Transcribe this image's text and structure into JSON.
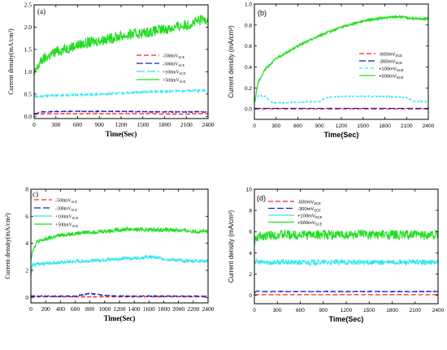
{
  "chart_data": [
    {
      "id": "a",
      "type": "line",
      "panel_label": "(a)",
      "xlabel": "Time(Sec)",
      "ylabel": "Current density(mA/cm²)",
      "xlim": [
        0,
        2400
      ],
      "ylim": [
        -0.05,
        2.5
      ],
      "xticks": [
        0,
        300,
        600,
        900,
        1200,
        1500,
        1800,
        2100,
        2400
      ],
      "yticks": [
        0.0,
        0.5,
        1.0,
        1.5,
        2.0,
        2.5
      ],
      "ytick_labels": [
        "0.0",
        "0.5",
        "1.0",
        "1.5",
        "2.0",
        "2.5"
      ],
      "legend_position": "center-right",
      "series": [
        {
          "name": "-500mV",
          "sub": "SCE",
          "color": "#ff2020",
          "dash": "6,3",
          "x": [
            0,
            400,
            800,
            1200,
            1600,
            2000,
            2400
          ],
          "y": [
            0.05,
            0.06,
            0.06,
            0.06,
            0.06,
            0.05,
            0.06
          ],
          "noise": 0.005
        },
        {
          "name": "-300mV",
          "sub": "SCE",
          "color": "#1c1cc8",
          "dash": "8,3",
          "x": [
            0,
            100,
            400,
            800,
            1200,
            1600,
            2000,
            2400
          ],
          "y": [
            0.05,
            0.1,
            0.11,
            0.11,
            0.11,
            0.1,
            0.1,
            0.1
          ],
          "noise": 0.01
        },
        {
          "name": "+100mV",
          "sub": "SCE",
          "color": "#33e6f0",
          "dash": "10,3",
          "x": [
            0,
            30,
            300,
            800,
            1200,
            1600,
            2000,
            2400
          ],
          "y": [
            0.5,
            0.44,
            0.47,
            0.49,
            0.52,
            0.55,
            0.57,
            0.58
          ],
          "noise": 0.02
        },
        {
          "name": "+500mV",
          "sub": "SCE",
          "color": "#22dd22",
          "dash": "",
          "x": [
            0,
            30,
            100,
            300,
            600,
            900,
            1200,
            1500,
            1800,
            2100,
            2400
          ],
          "y": [
            0.9,
            1.05,
            1.25,
            1.45,
            1.6,
            1.7,
            1.8,
            1.87,
            1.95,
            2.05,
            2.2
          ],
          "noise": 0.12
        }
      ]
    },
    {
      "id": "b",
      "type": "line",
      "panel_label": "(b)",
      "xlabel": "Time(Sec)",
      "ylabel": "Current density (mA/cm²)",
      "xlim": [
        0,
        2400
      ],
      "ylim": [
        -0.1,
        1.0
      ],
      "xticks": [
        0,
        300,
        600,
        900,
        1200,
        1500,
        1800,
        2100,
        2400
      ],
      "yticks": [
        -0.2,
        0.0,
        0.2,
        0.4,
        0.6,
        0.8,
        1.0
      ],
      "ytick_labels": [
        "-0.2",
        "0.0",
        "0.2",
        "0.4",
        "0.6",
        "0.8",
        "1.0"
      ],
      "legend_position": "center-right",
      "series": [
        {
          "name": "-500mV",
          "sub": "SCE",
          "color": "#ff2020",
          "dash": "6,3",
          "x": [
            0,
            2400
          ],
          "y": [
            0.0,
            0.0
          ],
          "noise": 0.0
        },
        {
          "name": "-300mV",
          "sub": "SCE",
          "color": "#1c1cc8",
          "dash": "8,3",
          "x": [
            0,
            2400
          ],
          "y": [
            0.005,
            0.005
          ],
          "noise": 0.0
        },
        {
          "name": "+100mV",
          "sub": "SCE",
          "color": "#33e6f0",
          "dash": "4,3",
          "x": [
            0,
            60,
            150,
            250,
            400,
            900,
            1000,
            1300,
            1700,
            2100,
            2200,
            2400
          ],
          "y": [
            0.07,
            0.13,
            0.12,
            0.06,
            0.06,
            0.07,
            0.11,
            0.12,
            0.12,
            0.11,
            0.07,
            0.07
          ],
          "noise": 0.005
        },
        {
          "name": "+500mV",
          "sub": "SCE",
          "color": "#22dd22",
          "dash": "",
          "x": [
            0,
            50,
            150,
            300,
            600,
            900,
            1200,
            1500,
            1800,
            2000,
            2200,
            2400
          ],
          "y": [
            0.05,
            0.25,
            0.38,
            0.48,
            0.6,
            0.7,
            0.78,
            0.84,
            0.87,
            0.88,
            0.86,
            0.86
          ],
          "noise": 0.01
        }
      ]
    },
    {
      "id": "c",
      "type": "line",
      "panel_label": "(c)",
      "xlabel": "Time(Sec)",
      "ylabel": "Current density(mA/cm²)",
      "xlim": [
        0,
        2400
      ],
      "ylim": [
        -0.4,
        8
      ],
      "xticks": [
        0,
        200,
        400,
        600,
        800,
        1000,
        1200,
        1400,
        1600,
        1800,
        2000,
        2200,
        2400
      ],
      "yticks": [
        0,
        2,
        4,
        6,
        8
      ],
      "ytick_labels": [
        "0",
        "2",
        "4",
        "6",
        "8"
      ],
      "legend_position": "top-left",
      "series": [
        {
          "name": "-500mV",
          "sub": "SCE",
          "color": "#ff2020",
          "dash": "6,3",
          "x": [
            0,
            2400
          ],
          "y": [
            0.05,
            0.05
          ],
          "noise": 0.02
        },
        {
          "name": "-300mV",
          "sub": "SCE",
          "color": "#1c1cc8",
          "dash": "8,3",
          "x": [
            0,
            600,
            800,
            1000,
            1200,
            2400
          ],
          "y": [
            0.1,
            0.1,
            0.3,
            0.15,
            0.1,
            0.1
          ],
          "noise": 0.03
        },
        {
          "name": "+100mV",
          "sub": "SCE",
          "color": "#33e6f0",
          "dash": "",
          "x": [
            0,
            20,
            100,
            300,
            600,
            900,
            1200,
            1500,
            1650,
            1800,
            2100,
            2400
          ],
          "y": [
            1.5,
            2.4,
            2.5,
            2.55,
            2.65,
            2.75,
            2.85,
            2.95,
            3.0,
            2.85,
            2.7,
            2.7
          ],
          "noise": 0.12
        },
        {
          "name": "+500mV",
          "sub": "SCE",
          "color": "#22dd22",
          "dash": "",
          "x": [
            0,
            20,
            80,
            200,
            400,
            700,
            1000,
            1300,
            1600,
            1900,
            2200,
            2400
          ],
          "y": [
            2.8,
            3.4,
            4.1,
            4.3,
            4.6,
            4.8,
            4.9,
            5.05,
            5.0,
            5.0,
            4.9,
            4.85
          ],
          "noise": 0.15
        }
      ]
    },
    {
      "id": "d",
      "type": "line",
      "panel_label": "(d)",
      "xlabel": "Time(Sec)",
      "ylabel": "Current density (mA/cm²)",
      "xlim": [
        0,
        2400
      ],
      "ylim": [
        -0.8,
        10
      ],
      "xticks": [
        0,
        300,
        600,
        900,
        1200,
        1500,
        1800,
        2100,
        2400
      ],
      "yticks": [
        -2,
        0,
        2,
        4,
        6,
        8,
        10
      ],
      "ytick_labels": [
        "-2",
        "0",
        "2",
        "4",
        "6",
        "8",
        "10"
      ],
      "legend_position": "top-center",
      "series": [
        {
          "name": "-500mV",
          "sub": "SCE",
          "color": "#ff2020",
          "dash": "6,3",
          "x": [
            0,
            2400
          ],
          "y": [
            0.05,
            0.05
          ],
          "noise": 0.01
        },
        {
          "name": "-300mV",
          "sub": "SCE",
          "color": "#1c1cc8",
          "dash": "8,3",
          "x": [
            0,
            30,
            100,
            2400
          ],
          "y": [
            0.2,
            0.4,
            0.35,
            0.35
          ],
          "noise": 0.03
        },
        {
          "name": "+100mV",
          "sub": "SCE",
          "color": "#33e6f0",
          "dash": "",
          "x": [
            0,
            100,
            2400
          ],
          "y": [
            3.2,
            3.1,
            3.1
          ],
          "noise": 0.25
        },
        {
          "name": "+500mV",
          "sub": "SCE",
          "color": "#22dd22",
          "dash": "",
          "x": [
            0,
            50,
            100,
            300,
            2400
          ],
          "y": [
            5.0,
            5.5,
            5.6,
            5.7,
            5.7
          ],
          "noise": 0.45
        }
      ]
    }
  ]
}
